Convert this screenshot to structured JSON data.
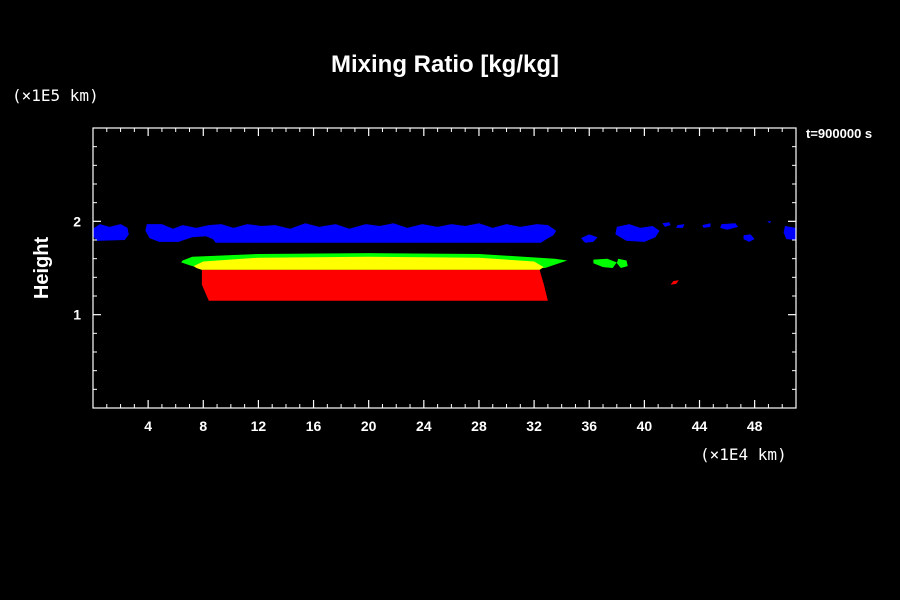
{
  "chart_data": {
    "type": "area",
    "title": "Mixing Ratio [kg/kg]",
    "xlabel": "",
    "ylabel": "Height",
    "x_unit": "(×1E4 km)",
    "y_unit": "(×1E5 km)",
    "time_label": "t=900000 s",
    "xlim": [
      0,
      51
    ],
    "ylim": [
      0,
      3
    ],
    "x_ticks": [
      4,
      8,
      12,
      16,
      20,
      24,
      28,
      32,
      36,
      40,
      44,
      48
    ],
    "y_ticks": [
      1,
      2
    ],
    "x_minor_step": 1,
    "y_minor_step": 0.2,
    "grid": false,
    "colors": {
      "background": "#000000",
      "frame": "#ffffff",
      "blue": "#0000ff",
      "green": "#00ff00",
      "yellow": "#ffff00",
      "red": "#ff0000"
    },
    "regions": [
      {
        "name": "blue-band",
        "color": "blue",
        "polygon": [
          [
            0,
            1.92
          ],
          [
            0.5,
            1.97
          ],
          [
            1.2,
            1.94
          ],
          [
            2,
            1.97
          ],
          [
            2.5,
            1.93
          ],
          [
            2.6,
            1.86
          ],
          [
            2.3,
            1.8
          ],
          [
            0.3,
            1.79
          ],
          [
            0,
            1.84
          ]
        ]
      },
      {
        "name": "blue-band",
        "color": "blue",
        "polygon": [
          [
            3.9,
            1.97
          ],
          [
            5,
            1.97
          ],
          [
            5.8,
            1.92
          ],
          [
            6.5,
            1.96
          ],
          [
            7.5,
            1.93
          ],
          [
            8.4,
            1.96
          ],
          [
            9.3,
            1.97
          ],
          [
            10.2,
            1.93
          ],
          [
            11.2,
            1.97
          ],
          [
            12.2,
            1.95
          ],
          [
            13.2,
            1.96
          ],
          [
            14.3,
            1.92
          ],
          [
            15.4,
            1.98
          ],
          [
            16.4,
            1.94
          ],
          [
            17.6,
            1.97
          ],
          [
            18.6,
            1.92
          ],
          [
            19.8,
            1.97
          ],
          [
            20.8,
            1.95
          ],
          [
            21.8,
            1.98
          ],
          [
            22.8,
            1.93
          ],
          [
            23.9,
            1.97
          ],
          [
            25,
            1.94
          ],
          [
            26,
            1.97
          ],
          [
            27,
            1.95
          ],
          [
            28,
            1.98
          ],
          [
            29,
            1.93
          ],
          [
            30,
            1.97
          ],
          [
            31,
            1.94
          ],
          [
            32.2,
            1.97
          ],
          [
            33,
            1.96
          ],
          [
            33.6,
            1.9
          ],
          [
            33.4,
            1.85
          ],
          [
            32.9,
            1.81
          ],
          [
            32.5,
            1.77
          ],
          [
            8.9,
            1.77
          ],
          [
            8.7,
            1.81
          ],
          [
            8.2,
            1.84
          ],
          [
            7.2,
            1.83
          ],
          [
            6.2,
            1.78
          ],
          [
            4.8,
            1.78
          ],
          [
            4.1,
            1.82
          ],
          [
            3.8,
            1.9
          ]
        ]
      },
      {
        "name": "blue-band",
        "color": "blue",
        "polygon": [
          [
            35.4,
            1.82
          ],
          [
            36,
            1.86
          ],
          [
            36.6,
            1.83
          ],
          [
            36.3,
            1.78
          ],
          [
            35.7,
            1.77
          ]
        ]
      },
      {
        "name": "blue-band",
        "color": "blue",
        "polygon": [
          [
            38,
            1.94
          ],
          [
            38.9,
            1.97
          ],
          [
            39.7,
            1.93
          ],
          [
            40.6,
            1.95
          ],
          [
            41.1,
            1.9
          ],
          [
            40.8,
            1.83
          ],
          [
            40,
            1.78
          ],
          [
            38.7,
            1.79
          ],
          [
            37.9,
            1.86
          ]
        ]
      },
      {
        "name": "blue-band",
        "color": "blue",
        "polygon": [
          [
            41.3,
            1.98
          ],
          [
            41.8,
            1.99
          ],
          [
            41.9,
            1.96
          ],
          [
            41.5,
            1.94
          ]
        ]
      },
      {
        "name": "blue-band",
        "color": "blue",
        "polygon": [
          [
            42.4,
            1.96
          ],
          [
            42.9,
            1.97
          ],
          [
            42.8,
            1.93
          ],
          [
            42.3,
            1.93
          ]
        ]
      },
      {
        "name": "blue-band",
        "color": "blue",
        "polygon": [
          [
            44.2,
            1.96
          ],
          [
            44.8,
            1.98
          ],
          [
            44.8,
            1.94
          ],
          [
            44.3,
            1.93
          ]
        ]
      },
      {
        "name": "blue-band",
        "color": "blue",
        "polygon": [
          [
            45.6,
            1.97
          ],
          [
            46.6,
            1.98
          ],
          [
            46.8,
            1.94
          ],
          [
            46,
            1.91
          ],
          [
            45.5,
            1.93
          ]
        ]
      },
      {
        "name": "blue-band",
        "color": "blue",
        "polygon": [
          [
            47.2,
            1.85
          ],
          [
            47.7,
            1.86
          ],
          [
            48,
            1.81
          ],
          [
            47.6,
            1.78
          ],
          [
            47.2,
            1.81
          ]
        ]
      },
      {
        "name": "blue-band",
        "color": "blue",
        "polygon": [
          [
            48.9,
            2.0
          ],
          [
            49.2,
            2.0
          ],
          [
            49.1,
            1.98
          ]
        ]
      },
      {
        "name": "blue-band",
        "color": "blue",
        "polygon": [
          [
            50.2,
            1.95
          ],
          [
            51,
            1.93
          ],
          [
            51,
            1.8
          ],
          [
            50.3,
            1.81
          ],
          [
            50.1,
            1.88
          ]
        ]
      },
      {
        "name": "green-layer",
        "color": "green",
        "polygon": [
          [
            6.5,
            1.58
          ],
          [
            7.2,
            1.62
          ],
          [
            12,
            1.65
          ],
          [
            20,
            1.66
          ],
          [
            28,
            1.65
          ],
          [
            33.5,
            1.6
          ],
          [
            34.4,
            1.58
          ],
          [
            33.6,
            1.54
          ],
          [
            32.8,
            1.5
          ],
          [
            7.7,
            1.5
          ],
          [
            7,
            1.53
          ],
          [
            6.4,
            1.56
          ]
        ]
      },
      {
        "name": "yellow-layer",
        "color": "yellow",
        "polygon": [
          [
            7.3,
            1.52
          ],
          [
            8,
            1.57
          ],
          [
            12,
            1.61
          ],
          [
            20,
            1.62
          ],
          [
            28,
            1.61
          ],
          [
            32,
            1.57
          ],
          [
            32.7,
            1.51
          ],
          [
            32.4,
            1.48
          ],
          [
            7.9,
            1.48
          ],
          [
            7.5,
            1.5
          ]
        ]
      },
      {
        "name": "red-layer",
        "color": "red",
        "polygon": [
          [
            7.9,
            1.48
          ],
          [
            32.4,
            1.48
          ],
          [
            32.7,
            1.33
          ],
          [
            33,
            1.15
          ],
          [
            8.4,
            1.15
          ],
          [
            7.9,
            1.32
          ]
        ]
      },
      {
        "name": "green-patch",
        "color": "green",
        "polygon": [
          [
            36.3,
            1.59
          ],
          [
            37.3,
            1.6
          ],
          [
            38,
            1.56
          ],
          [
            37.7,
            1.5
          ],
          [
            37,
            1.51
          ],
          [
            36.3,
            1.55
          ]
        ]
      },
      {
        "name": "green-patch",
        "color": "green",
        "polygon": [
          [
            38.1,
            1.6
          ],
          [
            38.7,
            1.58
          ],
          [
            38.8,
            1.52
          ],
          [
            38.3,
            1.5
          ],
          [
            38,
            1.55
          ]
        ]
      },
      {
        "name": "red-patch",
        "color": "red",
        "polygon": [
          [
            42.1,
            1.36
          ],
          [
            42.5,
            1.37
          ],
          [
            42.3,
            1.33
          ],
          [
            41.9,
            1.32
          ]
        ]
      }
    ]
  }
}
